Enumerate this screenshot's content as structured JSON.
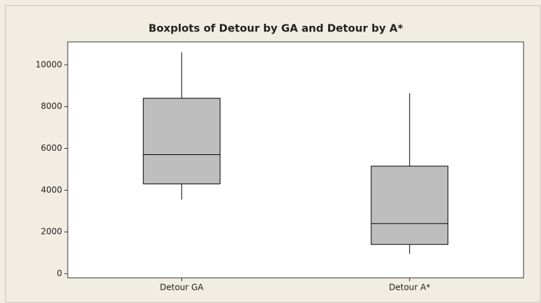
{
  "chart_data": {
    "type": "box",
    "title": "Boxplots of Detour by GA and Detour by A*",
    "categories": [
      "Detour GA",
      "Detour A*"
    ],
    "boxes": [
      {
        "min": 3550,
        "q1": 4300,
        "median": 5700,
        "q3": 8400,
        "max": 10600
      },
      {
        "min": 950,
        "q1": 1400,
        "median": 2400,
        "q3": 5150,
        "max": 8650
      }
    ],
    "color": "#bebebe",
    "ylim": [
      -200,
      11100
    ],
    "yticks": [
      0,
      2000,
      4000,
      6000,
      8000,
      10000
    ]
  }
}
